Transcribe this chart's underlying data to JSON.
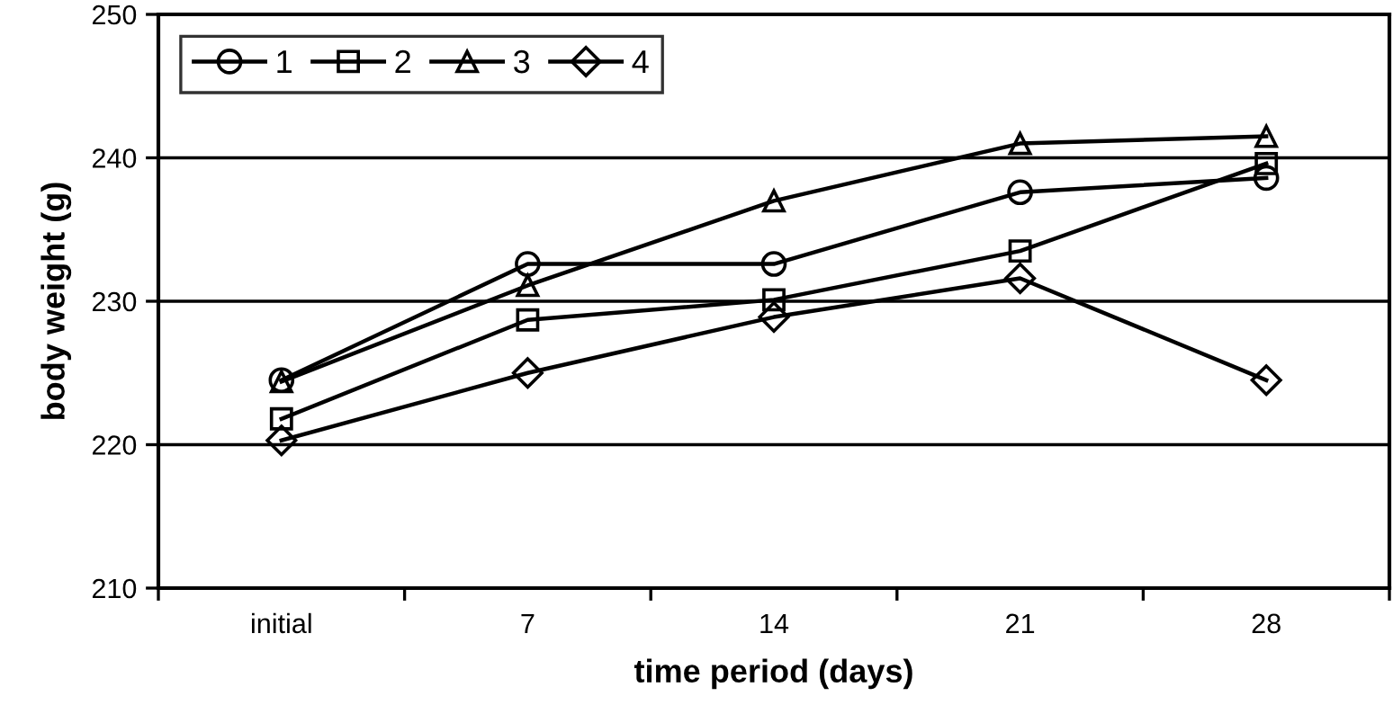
{
  "chart_data": {
    "type": "line",
    "xlabel": "time period (days)",
    "ylabel": "body weight (g)",
    "categories": [
      "initial",
      "7",
      "14",
      "21",
      "28"
    ],
    "series": [
      {
        "name": "1",
        "color": "#000000",
        "marker": "circle",
        "values": [
          224.5,
          232.6,
          232.6,
          237.6,
          238.6
        ]
      },
      {
        "name": "2",
        "color": "#000000",
        "marker": "square",
        "values": [
          221.8,
          228.7,
          230.1,
          233.5,
          239.6
        ]
      },
      {
        "name": "3",
        "color": "#000000",
        "marker": "triangle",
        "values": [
          224.4,
          231.1,
          237.0,
          241.0,
          241.5
        ]
      },
      {
        "name": "4",
        "color": "#000000",
        "marker": "diamond",
        "values": [
          220.3,
          225.0,
          228.9,
          231.6,
          224.5
        ]
      }
    ],
    "ylim": [
      210,
      250
    ],
    "yticks": [
      210,
      220,
      230,
      240,
      250
    ],
    "grid": "y",
    "legend": "top left",
    "line_style": "solid"
  }
}
